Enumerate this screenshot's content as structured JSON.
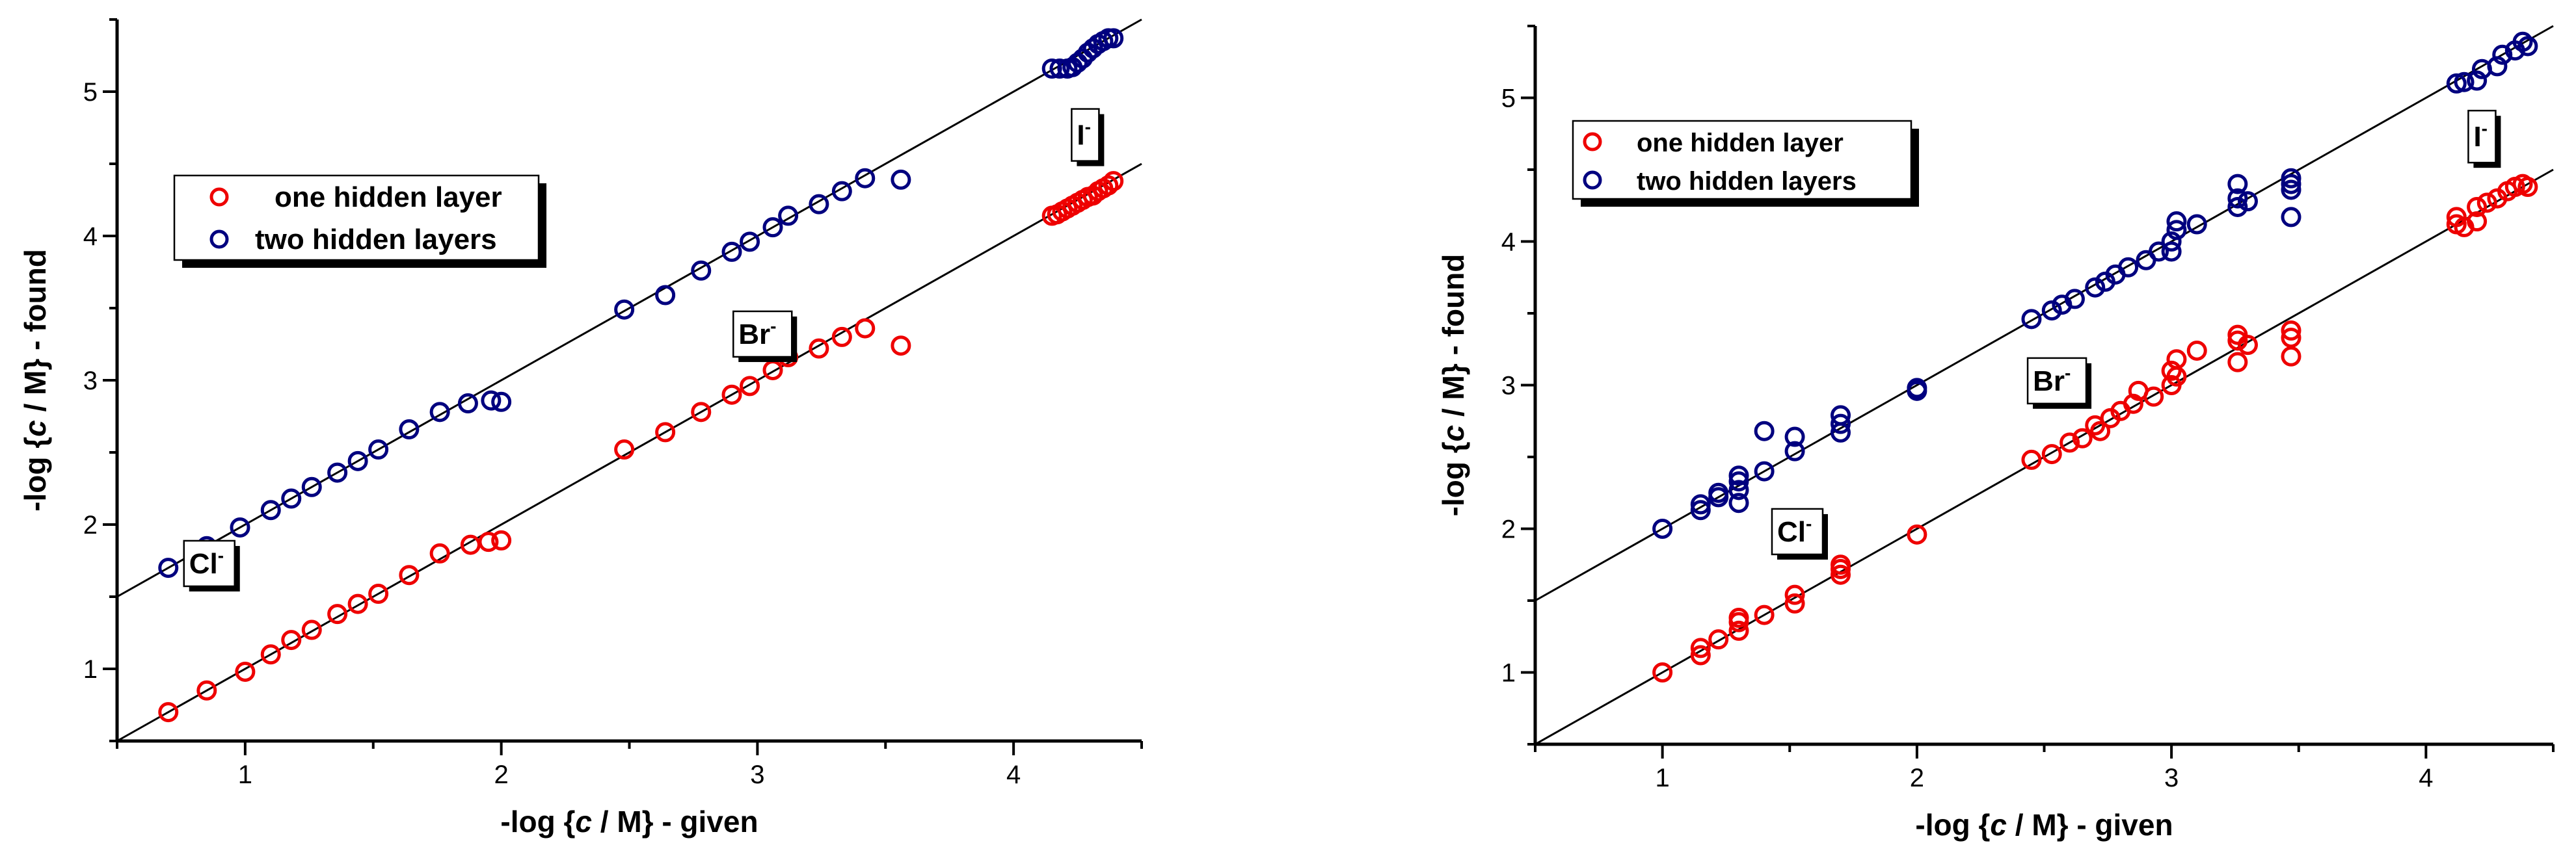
{
  "colors": {
    "series1": "#ee0000",
    "series2": "#00007f",
    "axis": "#000000",
    "fit": "#000000"
  },
  "chart_data": [
    {
      "type": "scatter",
      "xlabel_prefix": "-log {",
      "xlabel_italic": "c",
      "xlabel_suffix": " / M} - given",
      "ylabel_prefix": "-log {",
      "ylabel_italic": "c",
      "ylabel_suffix": " / M} - found",
      "xlim": [
        0.5,
        4.5
      ],
      "ylim": [
        0.5,
        5.5
      ],
      "xticks": [
        "1",
        "2",
        "3",
        "4"
      ],
      "xtick_values": [
        1,
        2,
        3,
        4
      ],
      "yticks": [
        "1",
        "2",
        "3",
        "4",
        "5"
      ],
      "ytick_values": [
        1,
        2,
        3,
        4,
        5
      ],
      "legend": {
        "placement": "upper-left",
        "entries": [
          "one hidden layer",
          "two hidden layers"
        ]
      },
      "annotations": [
        {
          "base": "Cl",
          "sup": "-",
          "x": 0.86,
          "y": 1.73
        },
        {
          "base": "Br",
          "sup": "-",
          "x": 3.02,
          "y": 3.32
        },
        {
          "base": "I",
          "sup": "-",
          "x": 4.28,
          "y": 4.7
        }
      ],
      "fit_lines": [
        {
          "slope": 1,
          "intercept": 0
        },
        {
          "slope": 1,
          "intercept": 1
        }
      ],
      "series": [
        {
          "name": "one hidden layer",
          "x": [
            0.7,
            0.85,
            1.0,
            1.1,
            1.18,
            1.26,
            1.36,
            1.44,
            1.52,
            1.64,
            1.76,
            1.88,
            1.95,
            2.0,
            2.48,
            2.64,
            2.78,
            2.9,
            2.97,
            3.06,
            3.12,
            3.24,
            3.33,
            3.42,
            3.56,
            4.15,
            4.17,
            4.19,
            4.21,
            4.23,
            4.25,
            4.27,
            4.29,
            4.31,
            4.33,
            4.35,
            4.37,
            4.39
          ],
          "y": [
            0.7,
            0.85,
            0.98,
            1.1,
            1.2,
            1.27,
            1.38,
            1.45,
            1.52,
            1.65,
            1.8,
            1.86,
            1.88,
            1.89,
            2.52,
            2.64,
            2.78,
            2.9,
            2.96,
            3.07,
            3.16,
            3.22,
            3.3,
            3.36,
            3.24,
            4.14,
            4.15,
            4.17,
            4.19,
            4.21,
            4.23,
            4.25,
            4.27,
            4.28,
            4.31,
            4.33,
            4.35,
            4.38
          ]
        },
        {
          "name": "two hidden layers",
          "x": [
            0.7,
            0.85,
            0.98,
            1.1,
            1.18,
            1.26,
            1.36,
            1.44,
            1.52,
            1.64,
            1.76,
            1.87,
            1.96,
            2.0,
            2.48,
            2.64,
            2.78,
            2.9,
            2.97,
            3.06,
            3.12,
            3.24,
            3.33,
            3.42,
            3.56,
            4.15,
            4.18,
            4.21,
            4.23,
            4.25,
            4.27,
            4.29,
            4.31,
            4.33,
            4.35,
            4.37,
            4.39
          ],
          "y": [
            1.7,
            1.85,
            1.98,
            2.1,
            2.18,
            2.26,
            2.36,
            2.44,
            2.52,
            2.66,
            2.78,
            2.84,
            2.86,
            2.85,
            3.49,
            3.59,
            3.76,
            3.89,
            3.96,
            4.06,
            4.14,
            4.22,
            4.31,
            4.4,
            4.39,
            5.16,
            5.16,
            5.16,
            5.17,
            5.2,
            5.23,
            5.27,
            5.3,
            5.33,
            5.35,
            5.37,
            5.37
          ]
        }
      ]
    },
    {
      "type": "scatter",
      "xlabel_prefix": "-log {",
      "xlabel_italic": "c",
      "xlabel_suffix": " / M} - given",
      "ylabel_prefix": "-log {",
      "ylabel_italic": "c",
      "ylabel_suffix": " / M} - found",
      "xlim": [
        0.5,
        4.5
      ],
      "ylim": [
        0.5,
        5.5
      ],
      "xticks": [
        "1",
        "2",
        "3",
        "4"
      ],
      "xtick_values": [
        1,
        2,
        3,
        4
      ],
      "yticks": [
        "1",
        "2",
        "3",
        "4",
        "5"
      ],
      "ytick_values": [
        1,
        2,
        3,
        4,
        5
      ],
      "legend": {
        "placement": "upper-left",
        "entries": [
          "one hidden layer",
          "two hidden layers"
        ]
      },
      "annotations": [
        {
          "base": "Cl",
          "sup": "-",
          "x": 1.53,
          "y": 1.98
        },
        {
          "base": "Br",
          "sup": "-",
          "x": 2.55,
          "y": 3.03
        },
        {
          "base": "I",
          "sup": "-",
          "x": 4.22,
          "y": 4.73
        }
      ],
      "fit_lines": [
        {
          "slope": 1,
          "intercept": 0
        },
        {
          "slope": 1,
          "intercept": 1
        }
      ],
      "series": [
        {
          "name": "one hidden layer",
          "x": [
            1.0,
            1.15,
            1.15,
            1.22,
            1.3,
            1.3,
            1.3,
            1.4,
            1.52,
            1.52,
            1.7,
            1.7,
            1.7,
            2.0,
            2.45,
            2.53,
            2.6,
            2.65,
            2.7,
            2.72,
            2.76,
            2.8,
            2.85,
            2.87,
            2.93,
            3.0,
            3.0,
            3.02,
            3.02,
            3.1,
            3.26,
            3.26,
            3.26,
            3.3,
            3.47,
            3.47,
            3.47,
            4.12,
            4.12,
            4.15,
            4.2,
            4.2,
            4.24,
            4.28,
            4.32,
            4.35,
            4.38,
            4.4
          ],
          "y": [
            1.0,
            1.12,
            1.17,
            1.23,
            1.29,
            1.35,
            1.38,
            1.4,
            1.48,
            1.54,
            1.68,
            1.72,
            1.75,
            1.96,
            2.48,
            2.52,
            2.6,
            2.63,
            2.72,
            2.68,
            2.77,
            2.82,
            2.87,
            2.96,
            2.92,
            3.0,
            3.1,
            3.06,
            3.18,
            3.24,
            3.16,
            3.31,
            3.35,
            3.28,
            3.2,
            3.33,
            3.38,
            4.12,
            4.17,
            4.1,
            4.14,
            4.24,
            4.27,
            4.3,
            4.35,
            4.38,
            4.4,
            4.38
          ]
        },
        {
          "name": "two hidden layers",
          "x": [
            1.0,
            1.15,
            1.15,
            1.22,
            1.22,
            1.3,
            1.3,
            1.3,
            1.3,
            1.4,
            1.4,
            1.52,
            1.52,
            1.7,
            1.7,
            1.7,
            2.0,
            2.0,
            2.45,
            2.53,
            2.57,
            2.62,
            2.7,
            2.74,
            2.78,
            2.83,
            2.9,
            2.95,
            3.0,
            3.0,
            3.02,
            3.02,
            3.1,
            3.26,
            3.26,
            3.26,
            3.3,
            3.47,
            3.47,
            3.47,
            3.47,
            4.12,
            4.15,
            4.2,
            4.22,
            4.28,
            4.3,
            4.35,
            4.38,
            4.4
          ],
          "y": [
            2.0,
            2.13,
            2.17,
            2.22,
            2.25,
            2.18,
            2.27,
            2.33,
            2.37,
            2.4,
            2.68,
            2.54,
            2.64,
            2.67,
            2.73,
            2.79,
            2.96,
            2.98,
            3.46,
            3.52,
            3.56,
            3.6,
            3.68,
            3.72,
            3.77,
            3.82,
            3.87,
            3.93,
            3.93,
            4.0,
            4.08,
            4.14,
            4.12,
            4.24,
            4.3,
            4.4,
            4.28,
            4.17,
            4.36,
            4.4,
            4.44,
            5.1,
            5.11,
            5.12,
            5.2,
            5.22,
            5.3,
            5.33,
            5.39,
            5.36
          ]
        }
      ]
    }
  ]
}
